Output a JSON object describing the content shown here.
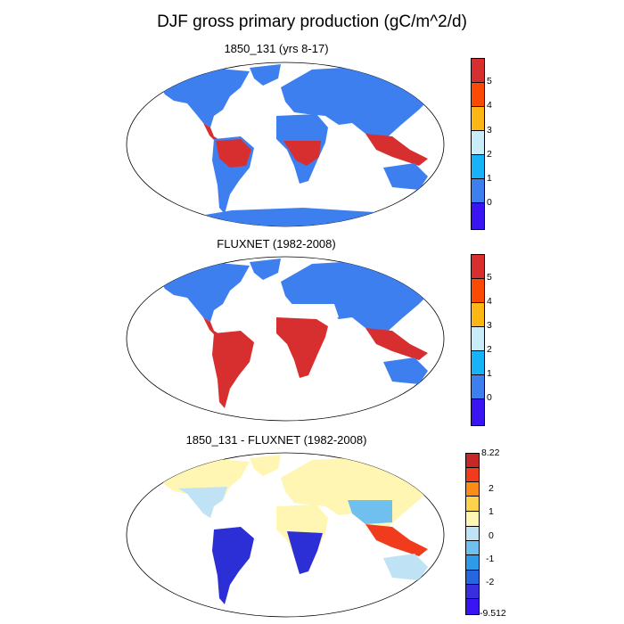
{
  "title": "DJF gross primary production (gC/m^2/d)",
  "panels": [
    {
      "title": "1850_131 (yrs 8-17)",
      "colorbar": {
        "tick_labels": [
          "5",
          "4",
          "3",
          "2",
          "1",
          "0"
        ],
        "colors": [
          "#d72f2f",
          "#fb4a04",
          "#fdb715",
          "#c8ecf8",
          "#17b2f8",
          "#3e7ff0",
          "#3a14f3"
        ]
      }
    },
    {
      "title": "FLUXNET (1982-2008)",
      "colorbar": {
        "tick_labels": [
          "5",
          "4",
          "3",
          "2",
          "1",
          "0"
        ],
        "colors": [
          "#d72f2f",
          "#fb4a04",
          "#fdb715",
          "#c8ecf8",
          "#17b2f8",
          "#3e7ff0",
          "#3a14f3"
        ]
      }
    },
    {
      "title": "1850_131 - FLUXNET (1982-2008)",
      "colorbar": {
        "tick_labels": [
          "8.22",
          "2",
          "1",
          "0",
          "-1",
          "-2",
          "-9.512"
        ],
        "colors": [
          "#c62828",
          "#f03c1c",
          "#fb8c15",
          "#fdd24c",
          "#fff6b4",
          "#bfe3f4",
          "#6fc0ee",
          "#2d9be8",
          "#2667e0",
          "#3a2fde",
          "#3a14f3"
        ]
      }
    }
  ],
  "colors": {
    "land_panel1": "#3e7ff0",
    "tropics_high": "#d72f2f",
    "diff_positive": "#fff6b4",
    "diff_negative": "#2d2fd6"
  }
}
